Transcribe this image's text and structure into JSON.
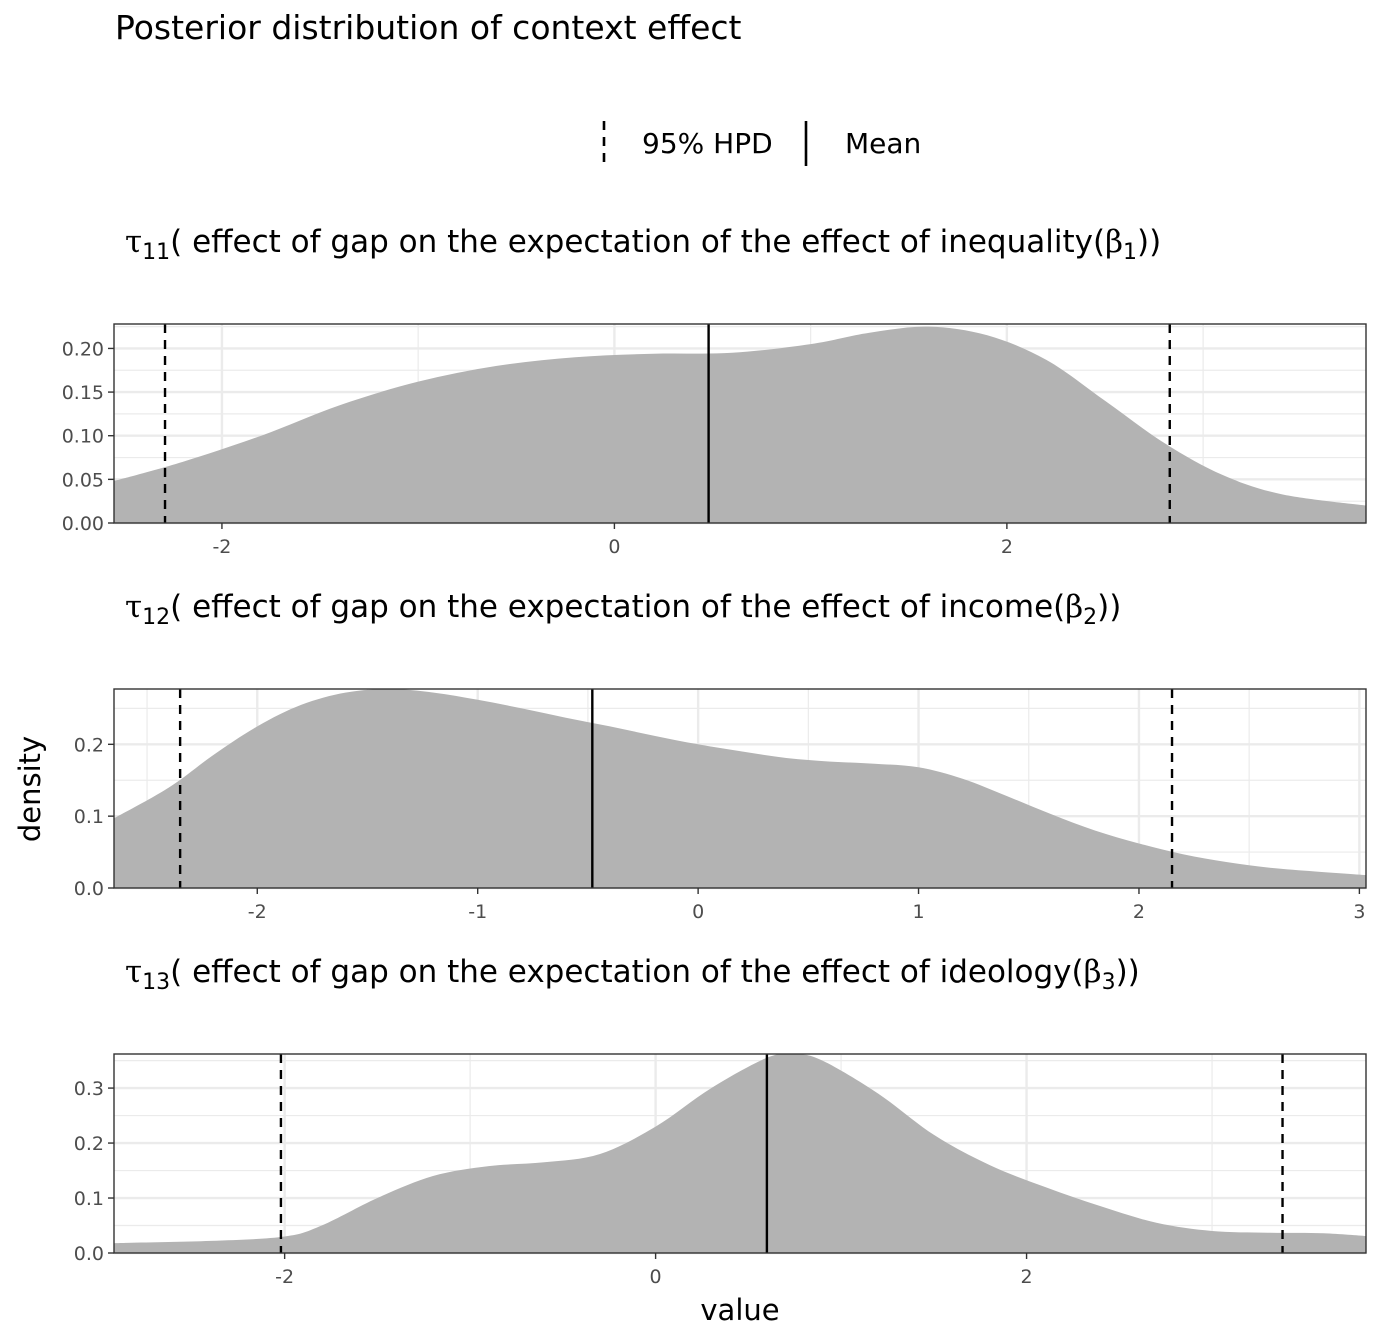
{
  "title": "Posterior distribution of context effect",
  "legend": {
    "items": [
      {
        "label": "95% HPD",
        "linetype": "dashed"
      },
      {
        "label": "Mean",
        "linetype": "solid"
      }
    ]
  },
  "xlabel": "value",
  "ylabel": "density",
  "colors": {
    "fill": "#b3b3b3",
    "grid": "#ebebeb",
    "line": "#000000",
    "border": "#333333"
  },
  "panels": [
    {
      "title_symbol": "τ",
      "title_sub": "11",
      "title_text": "( effect of gap on the expectation of the effect of inequality(",
      "title_beta": "β",
      "title_beta_sub": "1",
      "title_close": "))",
      "xlim": [
        -2.55,
        3.83
      ],
      "ylim": [
        0,
        0.228
      ],
      "xticks": [
        -2,
        0,
        2
      ],
      "xtick_labels": [
        "-2",
        "0",
        "2"
      ],
      "yticks": [
        0,
        0.05,
        0.1,
        0.15,
        0.2
      ],
      "ytick_labels": [
        "0.00",
        "0.05",
        "0.10",
        "0.15",
        "0.20"
      ]
    },
    {
      "title_symbol": "τ",
      "title_sub": "12",
      "title_text": "( effect of gap on the expectation of the effect of income(",
      "title_beta": "β",
      "title_beta_sub": "2",
      "title_close": "))",
      "xlim": [
        -2.65,
        3.03
      ],
      "ylim": [
        0,
        0.277
      ],
      "xticks": [
        -2,
        -1,
        0,
        1,
        2,
        3
      ],
      "xtick_labels": [
        "-2",
        "-1",
        "0",
        "1",
        "2",
        "3"
      ],
      "yticks": [
        0,
        0.1,
        0.2
      ],
      "ytick_labels": [
        "0.0",
        "0.1",
        "0.2"
      ]
    },
    {
      "title_symbol": "τ",
      "title_sub": "13",
      "title_text": "( effect of gap on the expectation of the effect of ideology(",
      "title_beta": "β",
      "title_beta_sub": "3",
      "title_close": "))",
      "xlim": [
        -2.92,
        3.83
      ],
      "ylim": [
        0,
        0.362
      ],
      "xticks": [
        -2,
        0,
        2
      ],
      "xtick_labels": [
        "-2",
        "0",
        "2"
      ],
      "yticks": [
        0,
        0.1,
        0.2,
        0.3
      ],
      "ytick_labels": [
        "0.0",
        "0.1",
        "0.2",
        "0.3"
      ]
    }
  ],
  "chart_data": [
    {
      "type": "area",
      "xlabel": "value",
      "ylabel": "density",
      "x": [
        -2.55,
        -2.2,
        -1.8,
        -1.4,
        -1.0,
        -0.6,
        -0.2,
        0.2,
        0.6,
        1.0,
        1.3,
        1.6,
        1.9,
        2.2,
        2.5,
        2.8,
        3.1,
        3.4,
        3.83
      ],
      "density": [
        0.048,
        0.07,
        0.1,
        0.135,
        0.162,
        0.18,
        0.19,
        0.194,
        0.195,
        0.205,
        0.218,
        0.225,
        0.215,
        0.187,
        0.14,
        0.092,
        0.055,
        0.033,
        0.02
      ],
      "hpd": [
        -2.29,
        2.83
      ],
      "mean": 0.48
    },
    {
      "type": "area",
      "xlabel": "value",
      "ylabel": "density",
      "x": [
        -2.65,
        -2.4,
        -2.2,
        -2.0,
        -1.8,
        -1.6,
        -1.4,
        -1.2,
        -1.0,
        -0.8,
        -0.6,
        -0.4,
        -0.2,
        0.0,
        0.2,
        0.4,
        0.6,
        0.8,
        1.0,
        1.2,
        1.4,
        1.6,
        1.8,
        2.0,
        2.2,
        2.4,
        2.6,
        2.8,
        3.03
      ],
      "density": [
        0.097,
        0.14,
        0.185,
        0.225,
        0.255,
        0.272,
        0.277,
        0.272,
        0.262,
        0.25,
        0.237,
        0.225,
        0.212,
        0.2,
        0.19,
        0.181,
        0.176,
        0.173,
        0.168,
        0.152,
        0.128,
        0.103,
        0.08,
        0.062,
        0.047,
        0.036,
        0.028,
        0.023,
        0.018
      ],
      "hpd": [
        -2.35,
        2.15
      ],
      "mean": -0.48
    },
    {
      "type": "area",
      "xlabel": "value",
      "ylabel": "density",
      "x": [
        -2.92,
        -2.4,
        -2.0,
        -1.8,
        -1.5,
        -1.2,
        -0.9,
        -0.6,
        -0.3,
        0.0,
        0.3,
        0.6,
        0.75,
        0.9,
        1.2,
        1.5,
        1.8,
        2.1,
        2.4,
        2.7,
        3.0,
        3.3,
        3.6,
        3.83
      ],
      "density": [
        0.018,
        0.022,
        0.03,
        0.05,
        0.1,
        0.14,
        0.158,
        0.165,
        0.18,
        0.23,
        0.3,
        0.355,
        0.362,
        0.35,
        0.29,
        0.215,
        0.16,
        0.12,
        0.085,
        0.055,
        0.04,
        0.037,
        0.036,
        0.031
      ],
      "hpd": [
        -2.02,
        3.38
      ],
      "mean": 0.6
    }
  ]
}
